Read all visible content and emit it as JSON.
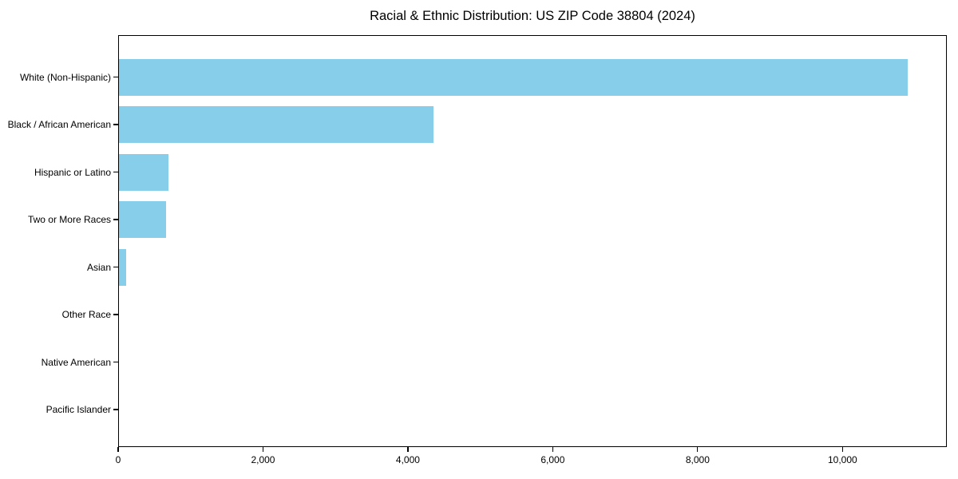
{
  "chart_data": {
    "type": "bar",
    "orientation": "horizontal",
    "title": "Racial & Ethnic Distribution: US ZIP Code 38804 (2024)",
    "categories": [
      "White (Non-Hispanic)",
      "Black / African American",
      "Hispanic or Latino",
      "Two or More Races",
      "Asian",
      "Other Race",
      "Native American",
      "Pacific Islander"
    ],
    "values": [
      10900,
      4355,
      695,
      660,
      110,
      15,
      8,
      3
    ],
    "bar_color": "#87CEEB",
    "frame_color": "#000000",
    "background_color": "#ffffff",
    "xlabel": "",
    "ylabel": "",
    "xlim": [
      0,
      11440
    ],
    "x_ticks": [
      0,
      2000,
      4000,
      6000,
      8000,
      10000
    ],
    "x_tick_labels": [
      "0",
      "2,000",
      "4,000",
      "6,000",
      "8,000",
      "10,000"
    ],
    "grid": false,
    "legend": false
  }
}
